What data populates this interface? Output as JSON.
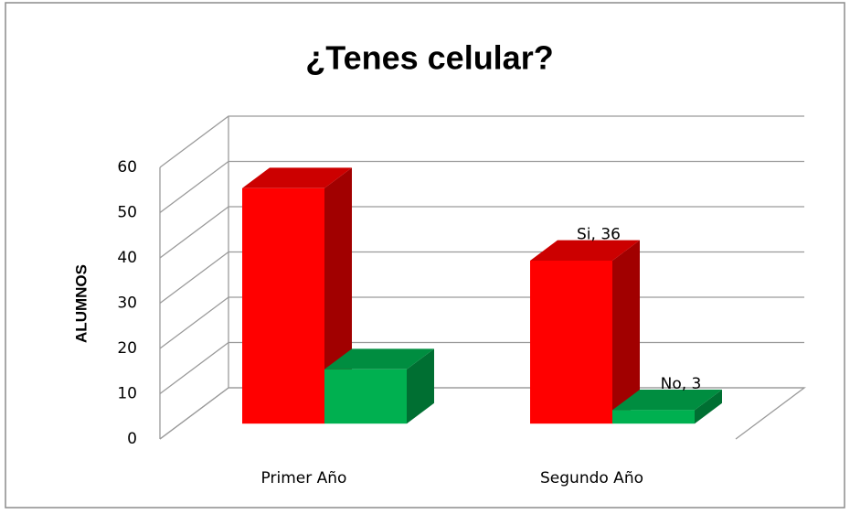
{
  "chart_data": {
    "type": "bar3d",
    "title": "¿Tenes celular?",
    "ylabel": "ALUMNOS",
    "categories": [
      "Primer Año",
      "Segundo Año"
    ],
    "series": [
      {
        "name": "Si",
        "color": "#ff0000",
        "values": [
          52,
          36
        ],
        "value_labels": [
          null,
          "Si, 36"
        ]
      },
      {
        "name": "No",
        "color": "#00b050",
        "values": [
          12,
          3
        ],
        "value_labels": [
          null,
          "No, 3"
        ]
      }
    ],
    "ylim": [
      0,
      60
    ],
    "yticks": [
      0,
      10,
      20,
      30,
      40,
      50,
      60
    ],
    "grid": true
  }
}
